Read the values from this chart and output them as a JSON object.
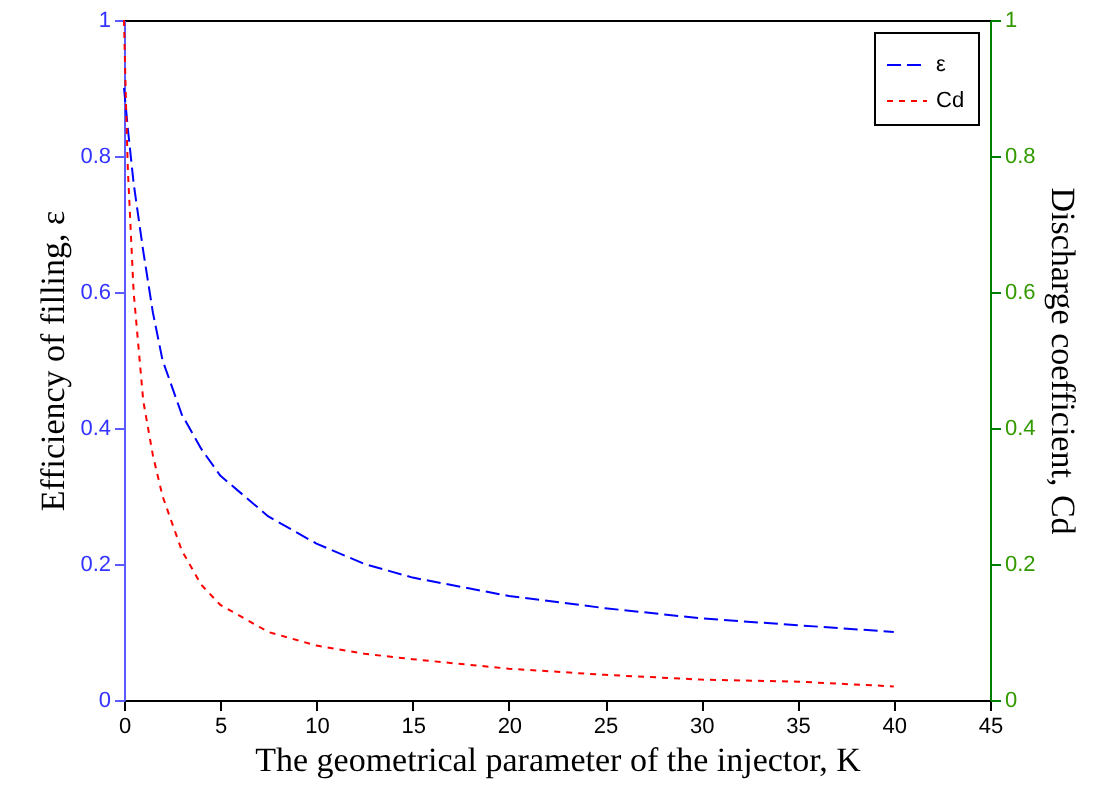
{
  "chart_data": {
    "type": "line",
    "xlabel": "The geometrical parameter of the injector, K",
    "ylabel": "Efficiency of filling, ε",
    "y2label": "Discharge coefficient, Cd",
    "x": [
      0,
      0.1,
      0.2,
      0.5,
      1,
      1.5,
      2,
      3,
      4,
      5,
      7.5,
      10,
      12.5,
      15,
      20,
      25,
      30,
      35,
      40
    ],
    "series": [
      {
        "name": "ε",
        "color": "#0000ff",
        "line_style": "dashed",
        "values": [
          0.9,
          0.87,
          0.84,
          0.76,
          0.66,
          0.57,
          0.5,
          0.42,
          0.37,
          0.33,
          0.27,
          0.23,
          0.2,
          0.18,
          0.153,
          0.135,
          0.12,
          0.11,
          0.1
        ]
      },
      {
        "name": "Cd",
        "color": "#ff0000",
        "line_style": "dotted",
        "axis": "y2",
        "values": [
          1,
          0.88,
          0.78,
          0.6,
          0.44,
          0.36,
          0.3,
          0.22,
          0.17,
          0.14,
          0.1,
          0.08,
          0.068,
          0.06,
          0.046,
          0.037,
          0.03,
          0.027,
          0.02
        ]
      }
    ],
    "xlim": [
      0,
      45
    ],
    "xticks": [
      0,
      5,
      10,
      15,
      20,
      25,
      30,
      35,
      40,
      45
    ],
    "ylim": [
      0,
      1
    ],
    "yticks": [
      0,
      0.2,
      0.4,
      0.6,
      0.8,
      1
    ],
    "y2lim": [
      0,
      1
    ],
    "y2ticks": [
      0,
      0.2,
      0.4,
      0.6,
      0.8,
      1
    ],
    "legend": "top right",
    "grid": false
  }
}
